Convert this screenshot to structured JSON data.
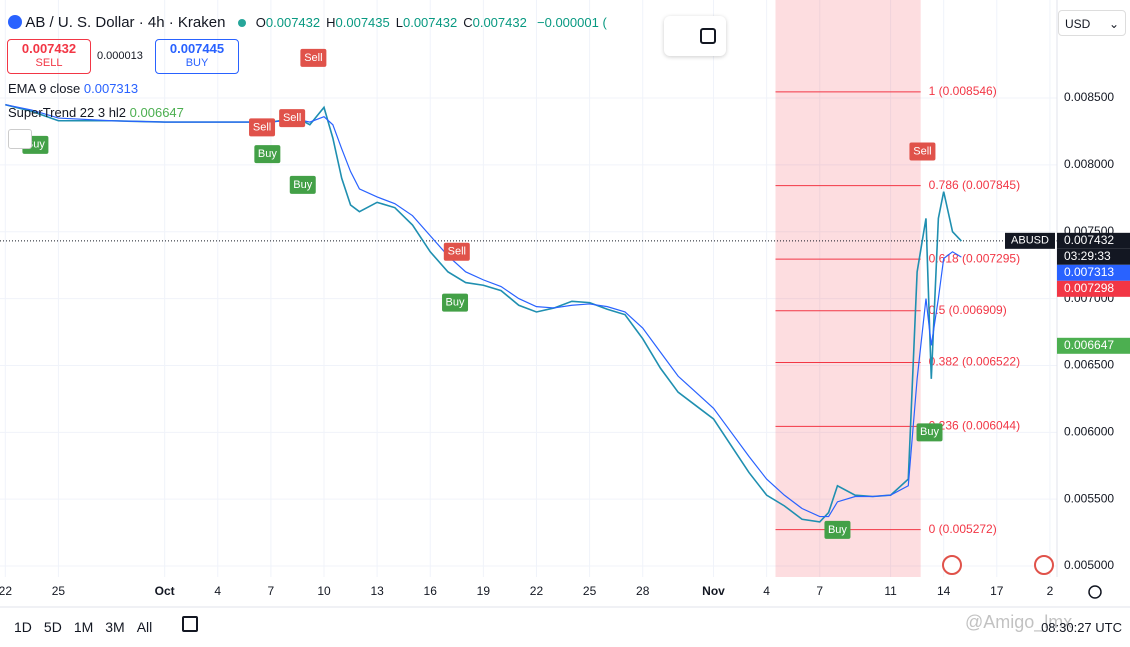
{
  "header": {
    "title": "AB / U. S. Dollar · 4h · Kraken",
    "ohlc": [
      {
        "k": "O",
        "v": "0.007432"
      },
      {
        "k": "H",
        "v": "0.007435"
      },
      {
        "k": "L",
        "v": "0.007432"
      },
      {
        "k": "C",
        "v": "0.007432"
      }
    ],
    "change": "−0.000001 ("
  },
  "trade": {
    "sell_price": "0.007432",
    "sell": "SELL",
    "spread": "0.000013",
    "buy_price": "0.007445",
    "buy": "BUY"
  },
  "indicators": [
    {
      "name": "EMA 9 close",
      "value": "0.007313"
    },
    {
      "name": "SuperTrend 22 3 hl2",
      "value": "0.006647"
    }
  ],
  "currency": "USD",
  "ranges": [
    "1D",
    "5D",
    "1M",
    "3M",
    "All"
  ],
  "clock": "08:30:27 UTC",
  "watermark": "@Amigo_lmx",
  "chart_data": {
    "type": "line",
    "x": [
      0,
      1.5,
      3,
      6,
      9,
      12,
      15,
      16.5,
      17.2,
      18,
      18.5,
      19,
      19.5,
      20,
      21,
      22,
      23,
      24,
      25,
      26,
      27,
      28,
      29,
      30,
      31,
      32,
      33,
      34,
      35,
      36,
      37,
      38,
      39,
      40,
      41,
      42,
      43,
      44,
      45,
      46,
      46.5,
      47,
      48,
      49,
      50,
      51,
      51.5,
      52,
      52.3,
      52.7,
      53,
      53.5,
      54
    ],
    "series": [
      {
        "name": "ABUSD",
        "color": "#1f8fb0",
        "values": [
          0.00845,
          0.0084,
          0.00833,
          0.00833,
          0.00832,
          0.00832,
          0.00832,
          0.00835,
          0.0083,
          0.00843,
          0.0082,
          0.0079,
          0.0077,
          0.00765,
          0.00772,
          0.00768,
          0.00755,
          0.00735,
          0.0072,
          0.00712,
          0.0071,
          0.00706,
          0.00695,
          0.0069,
          0.00693,
          0.00698,
          0.00697,
          0.00692,
          0.00688,
          0.0067,
          0.00648,
          0.0063,
          0.0062,
          0.0061,
          0.0059,
          0.0057,
          0.00553,
          0.00545,
          0.00535,
          0.00533,
          0.0054,
          0.0056,
          0.00553,
          0.00552,
          0.00553,
          0.00565,
          0.0072,
          0.0076,
          0.0064,
          0.0076,
          0.0078,
          0.0075,
          0.00743
        ]
      },
      {
        "name": "EMA 9 close",
        "color": "#2962ff",
        "values": [
          0.00845,
          0.00841,
          0.00835,
          0.00833,
          0.00832,
          0.00832,
          0.00832,
          0.00834,
          0.00832,
          0.00836,
          0.0083,
          0.00812,
          0.00795,
          0.00782,
          0.00776,
          0.00771,
          0.00762,
          0.00747,
          0.00732,
          0.0072,
          0.00714,
          0.00709,
          0.007,
          0.00694,
          0.00693,
          0.00695,
          0.00696,
          0.00694,
          0.0069,
          0.00678,
          0.0066,
          0.00642,
          0.0063,
          0.00618,
          0.006,
          0.00582,
          0.00565,
          0.00553,
          0.00543,
          0.00537,
          0.00537,
          0.00548,
          0.00552,
          0.00552,
          0.00553,
          0.0056,
          0.0064,
          0.007,
          0.00665,
          0.007,
          0.0073,
          0.00735,
          0.00731
        ]
      }
    ],
    "xlim": [
      -0.3,
      59.4
    ],
    "xticks": [
      {
        "value": 0,
        "label": "22"
      },
      {
        "value": 3,
        "label": "25"
      },
      {
        "value": 9,
        "label": "Oct"
      },
      {
        "value": 12,
        "label": "4"
      },
      {
        "value": 15,
        "label": "7"
      },
      {
        "value": 18,
        "label": "10"
      },
      {
        "value": 21,
        "label": "13"
      },
      {
        "value": 24,
        "label": "16"
      },
      {
        "value": 27,
        "label": "19"
      },
      {
        "value": 30,
        "label": "22"
      },
      {
        "value": 33,
        "label": "25"
      },
      {
        "value": 36,
        "label": "28"
      },
      {
        "value": 40,
        "label": "Nov"
      },
      {
        "value": 43,
        "label": "4"
      },
      {
        "value": 46,
        "label": "7"
      },
      {
        "value": 50,
        "label": "11"
      },
      {
        "value": 53,
        "label": "14"
      },
      {
        "value": 56,
        "label": "17"
      },
      {
        "value": 59,
        "label": "2"
      }
    ],
    "ylim": [
      0.004918,
      0.009233
    ],
    "yticks": [
      {
        "value": 0.005,
        "label": "0.005000"
      },
      {
        "value": 0.0055,
        "label": "0.005500"
      },
      {
        "value": 0.006,
        "label": "0.006000"
      },
      {
        "value": 0.0065,
        "label": "0.006500"
      },
      {
        "value": 0.007,
        "label": "0.007000"
      },
      {
        "value": 0.0075,
        "label": "0.007500"
      },
      {
        "value": 0.008,
        "label": "0.008000"
      },
      {
        "value": 0.0085,
        "label": "0.008500"
      }
    ],
    "grid": true,
    "fib": {
      "x_range": [
        43.5,
        51.7
      ],
      "color": "#f23645",
      "levels": [
        {
          "value": 0.008546,
          "label": "1 (0.008546)"
        },
        {
          "value": 0.007845,
          "label": "0.786 (0.007845)"
        },
        {
          "value": 0.007295,
          "label": "0.618 (0.007295)"
        },
        {
          "value": 0.006909,
          "label": "0.5 (0.006909)"
        },
        {
          "value": 0.006522,
          "label": "0.382 (0.006522)"
        },
        {
          "value": 0.006044,
          "label": "0.236 (0.006044)"
        },
        {
          "value": 0.005272,
          "label": "0 (0.005272)"
        }
      ]
    },
    "signals": [
      {
        "x": 1.7,
        "y": 0.00815,
        "label": "Buy",
        "color": "#43a047"
      },
      {
        "x": 14.5,
        "y": 0.00828,
        "label": "Sell",
        "color": "#e0524a"
      },
      {
        "x": 14.8,
        "y": 0.00808,
        "label": "Buy",
        "color": "#43a047"
      },
      {
        "x": 16.2,
        "y": 0.00835,
        "label": "Sell",
        "color": "#e0524a"
      },
      {
        "x": 16.8,
        "y": 0.00785,
        "label": "Buy",
        "color": "#43a047"
      },
      {
        "x": 17.4,
        "y": 0.0088,
        "label": "Sell",
        "color": "#e0524a"
      },
      {
        "x": 25.5,
        "y": 0.00735,
        "label": "Sell",
        "color": "#e0524a"
      },
      {
        "x": 25.4,
        "y": 0.00697,
        "label": "Buy",
        "color": "#43a047"
      },
      {
        "x": 47,
        "y": 0.00527,
        "label": "Buy",
        "color": "#43a047"
      },
      {
        "x": 51.8,
        "y": 0.0081,
        "label": "Sell",
        "color": "#e0524a"
      },
      {
        "x": 52.2,
        "y": 0.006,
        "label": "Buy",
        "color": "#43a047"
      }
    ],
    "last_price": {
      "value": 0.007432,
      "label": "0.007432",
      "symbol": "ABUSD",
      "countdown": "03:29:33",
      "color": "#131722"
    },
    "price_tags": [
      {
        "value": 0.007313,
        "label": "0.007313",
        "color": "#2962ff"
      },
      {
        "value": 0.007298,
        "label": "0.007298",
        "color": "#f23645"
      },
      {
        "value": 0.006647,
        "label": "0.006647",
        "color": "#4caf50"
      }
    ]
  }
}
